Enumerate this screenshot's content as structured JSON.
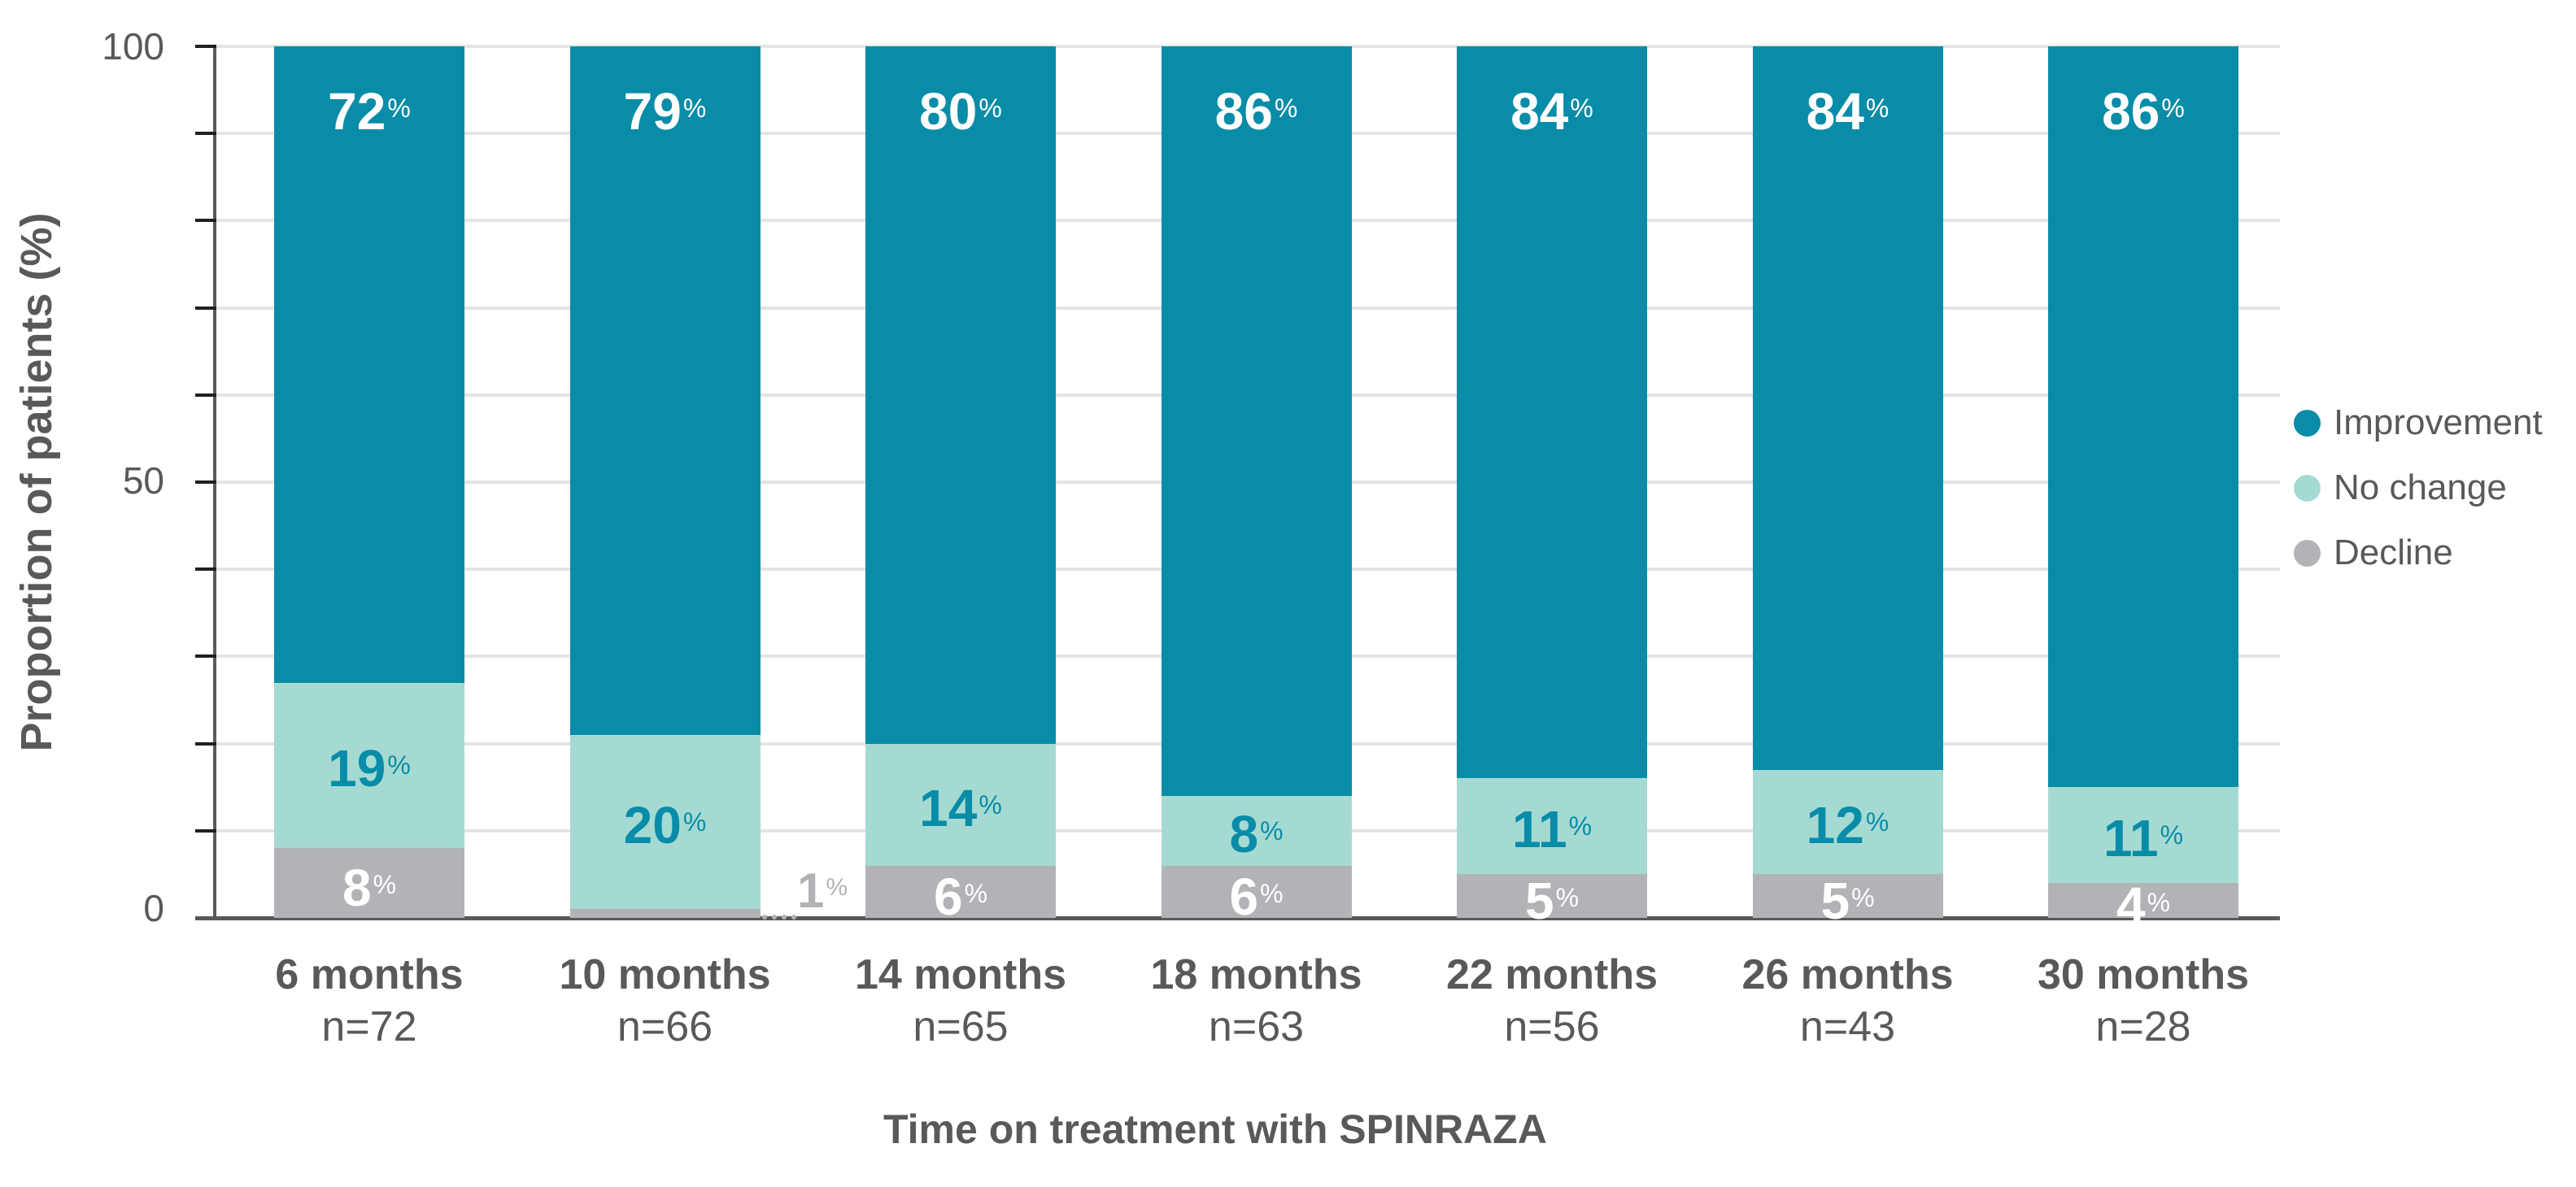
{
  "chart_data": {
    "type": "bar",
    "stacked": true,
    "title": "",
    "xlabel": "Time on treatment with SPINRAZA",
    "ylabel": "Proportion of patients (%)",
    "ylim": [
      0,
      100
    ],
    "yticks": [
      0,
      50,
      100
    ],
    "minor_ticks_every": 10,
    "grid": true,
    "legend_position": "right",
    "categories": [
      "6 months",
      "10 months",
      "14 months",
      "18 months",
      "22 months",
      "26 months",
      "30 months"
    ],
    "sample_sizes": [
      "n=72",
      "n=66",
      "n=65",
      "n=63",
      "n=56",
      "n=43",
      "n=28"
    ],
    "series": [
      {
        "name": "Decline",
        "color": "#b1b3b6",
        "values": [
          8,
          1,
          6,
          6,
          5,
          5,
          4
        ]
      },
      {
        "name": "No change",
        "color": "#a5dad2",
        "values": [
          19,
          20,
          14,
          8,
          11,
          12,
          11
        ]
      },
      {
        "name": "Improvement",
        "color": "#088ca8",
        "values": [
          72,
          79,
          80,
          86,
          84,
          84,
          86
        ]
      }
    ],
    "value_labels_suffix": "%"
  },
  "axis": {
    "y_title": "Proportion of patients (%)",
    "y_ticks": [
      {
        "value": 100,
        "label": "100"
      },
      {
        "value": 50,
        "label": "50"
      },
      {
        "value": 0,
        "label": "0"
      }
    ],
    "x_title": "Time on treatment with SPINRAZA"
  },
  "legend": {
    "items": [
      {
        "label": "Improvement",
        "color": "#088ca8"
      },
      {
        "label": "No change",
        "color": "#a5dad2"
      },
      {
        "label": "Decline",
        "color": "#b1b3b6"
      }
    ]
  },
  "bars": [
    {
      "category": "6 months",
      "n": "n=72",
      "improvement": {
        "value": 72,
        "label": "72",
        "pct": "%"
      },
      "no_change": {
        "value": 19,
        "label": "19",
        "pct": "%"
      },
      "decline": {
        "value": 8,
        "label": "8",
        "pct": "%"
      }
    },
    {
      "category": "10 months",
      "n": "n=66",
      "improvement": {
        "value": 79,
        "label": "79",
        "pct": "%"
      },
      "no_change": {
        "value": 20,
        "label": "20",
        "pct": "%"
      },
      "decline": {
        "value": 1,
        "label": "1",
        "pct": "%"
      }
    },
    {
      "category": "14 months",
      "n": "n=65",
      "improvement": {
        "value": 80,
        "label": "80",
        "pct": "%"
      },
      "no_change": {
        "value": 14,
        "label": "14",
        "pct": "%"
      },
      "decline": {
        "value": 6,
        "label": "6",
        "pct": "%"
      }
    },
    {
      "category": "18 months",
      "n": "n=63",
      "improvement": {
        "value": 86,
        "label": "86",
        "pct": "%"
      },
      "no_change": {
        "value": 8,
        "label": "8",
        "pct": "%"
      },
      "decline": {
        "value": 6,
        "label": "6",
        "pct": "%"
      }
    },
    {
      "category": "22 months",
      "n": "n=56",
      "improvement": {
        "value": 84,
        "label": "84",
        "pct": "%"
      },
      "no_change": {
        "value": 11,
        "label": "11",
        "pct": "%"
      },
      "decline": {
        "value": 5,
        "label": "5",
        "pct": "%"
      }
    },
    {
      "category": "26 months",
      "n": "n=43",
      "improvement": {
        "value": 84,
        "label": "84",
        "pct": "%"
      },
      "no_change": {
        "value": 12,
        "label": "12",
        "pct": "%"
      },
      "decline": {
        "value": 5,
        "label": "5",
        "pct": "%"
      }
    },
    {
      "category": "30 months",
      "n": "n=28",
      "improvement": {
        "value": 86,
        "label": "86",
        "pct": "%"
      },
      "no_change": {
        "value": 11,
        "label": "11",
        "pct": "%"
      },
      "decline": {
        "value": 4,
        "label": "4",
        "pct": "%"
      }
    }
  ],
  "colors": {
    "improvement": "#088ca8",
    "no_change": "#a5dad2",
    "decline": "#b1b3b6",
    "text": "#58595b",
    "gridline": "#e3e4e5",
    "label_on_dark": "#ffffff",
    "label_on_light": "#088ca8"
  }
}
